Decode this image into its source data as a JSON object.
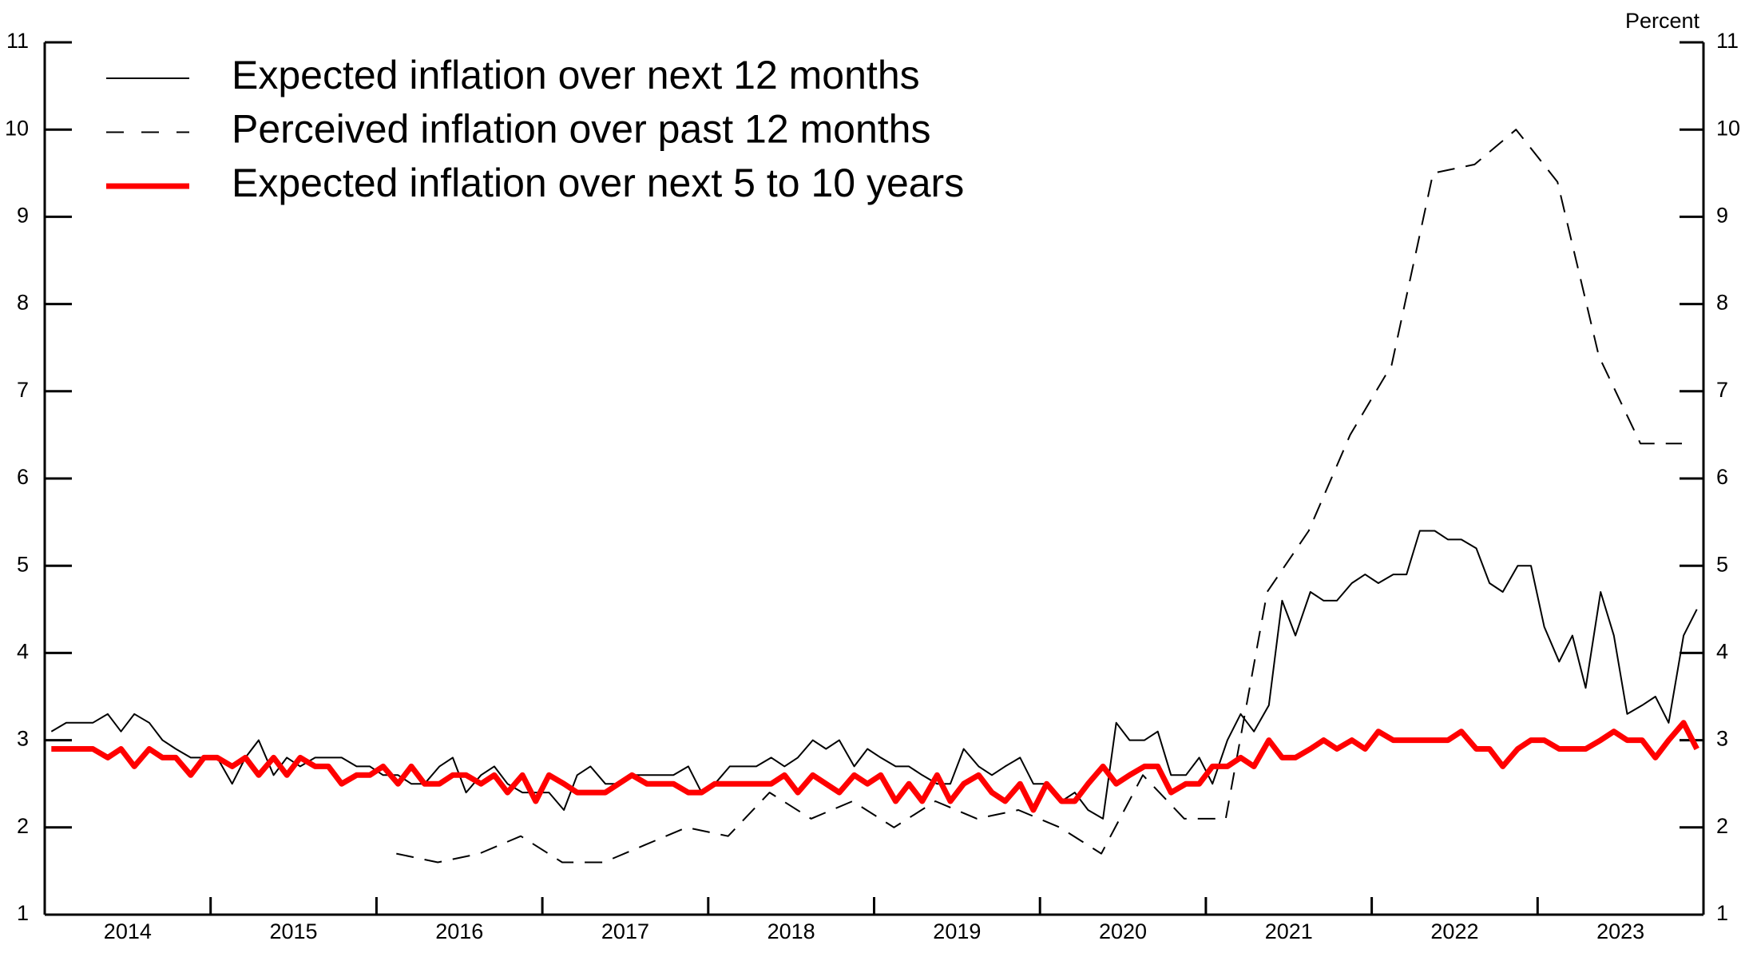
{
  "chart_data": {
    "type": "line",
    "y_label": "Percent",
    "categories": [
      "2014",
      "2015",
      "2016",
      "2017",
      "2018",
      "2019",
      "2020",
      "2021",
      "2022",
      "2023"
    ],
    "xlim": [
      2014,
      2024
    ],
    "xticks": [
      2014,
      2015,
      2016,
      2017,
      2018,
      2019,
      2020,
      2021,
      2022,
      2023,
      2024
    ],
    "ylim": [
      1,
      11
    ],
    "yticks": [
      1,
      2,
      3,
      4,
      5,
      6,
      7,
      8,
      9,
      10,
      11
    ],
    "y2lim": [
      1,
      11
    ],
    "y2ticks": [
      1,
      2,
      3,
      4,
      5,
      6,
      7,
      8,
      9,
      10,
      11
    ],
    "legend": "upper left",
    "x": [
      2014.04,
      2014.13,
      2014.21,
      2014.29,
      2014.38,
      2014.46,
      2014.54,
      2014.63,
      2014.71,
      2014.79,
      2014.88,
      2014.96,
      2015.04,
      2015.13,
      2015.21,
      2015.29,
      2015.38,
      2015.46,
      2015.54,
      2015.63,
      2015.71,
      2015.79,
      2015.88,
      2015.96,
      2016.04,
      2016.13,
      2016.21,
      2016.29,
      2016.38,
      2016.46,
      2016.54,
      2016.63,
      2016.71,
      2016.79,
      2016.88,
      2016.96,
      2017.04,
      2017.13,
      2017.21,
      2017.29,
      2017.38,
      2017.46,
      2017.54,
      2017.63,
      2017.71,
      2017.79,
      2017.88,
      2017.96,
      2018.04,
      2018.13,
      2018.21,
      2018.29,
      2018.38,
      2018.46,
      2018.54,
      2018.63,
      2018.71,
      2018.79,
      2018.88,
      2018.96,
      2019.04,
      2019.13,
      2019.21,
      2019.29,
      2019.38,
      2019.46,
      2019.54,
      2019.63,
      2019.71,
      2019.79,
      2019.88,
      2019.96,
      2020.04,
      2020.13,
      2020.21,
      2020.29,
      2020.38,
      2020.46,
      2020.54,
      2020.63,
      2020.71,
      2020.79,
      2020.88,
      2020.96,
      2021.04,
      2021.13,
      2021.21,
      2021.29,
      2021.38,
      2021.46,
      2021.54,
      2021.63,
      2021.71,
      2021.79,
      2021.88,
      2021.96,
      2022.04,
      2022.13,
      2022.21,
      2022.29,
      2022.38,
      2022.46,
      2022.54,
      2022.63,
      2022.71,
      2022.79,
      2022.88,
      2022.96,
      2023.04,
      2023.13,
      2023.21,
      2023.29,
      2023.38,
      2023.46,
      2023.54,
      2023.63,
      2023.71,
      2023.79,
      2023.88,
      2023.96
    ],
    "series": [
      {
        "name": "Expected inflation over next 12 months",
        "color": "#000000",
        "dash": false,
        "line_width": 2,
        "values": [
          3.1,
          3.2,
          3.2,
          3.2,
          3.3,
          3.1,
          3.3,
          3.2,
          3.0,
          2.9,
          2.8,
          2.8,
          2.8,
          2.5,
          2.8,
          3.0,
          2.6,
          2.8,
          2.7,
          2.8,
          2.8,
          2.8,
          2.7,
          2.7,
          2.6,
          2.6,
          2.5,
          2.5,
          2.7,
          2.8,
          2.4,
          2.6,
          2.7,
          2.5,
          2.4,
          2.4,
          2.4,
          2.2,
          2.6,
          2.7,
          2.5,
          2.5,
          2.6,
          2.6,
          2.6,
          2.6,
          2.7,
          2.4,
          2.5,
          2.7,
          2.7,
          2.7,
          2.8,
          2.7,
          2.8,
          3.0,
          2.9,
          3.0,
          2.7,
          2.9,
          2.8,
          2.7,
          2.7,
          2.6,
          2.5,
          2.5,
          2.9,
          2.7,
          2.6,
          2.7,
          2.8,
          2.5,
          2.5,
          2.3,
          2.4,
          2.2,
          2.1,
          3.2,
          3.0,
          3.0,
          3.1,
          2.6,
          2.6,
          2.8,
          2.5,
          3.0,
          3.3,
          3.1,
          3.4,
          4.6,
          4.2,
          4.7,
          4.6,
          4.6,
          4.8,
          4.9,
          4.8,
          4.9,
          4.9,
          5.4,
          5.4,
          5.3,
          5.3,
          5.2,
          4.8,
          4.7,
          5.0,
          5.0,
          4.3,
          3.9,
          4.2,
          3.6,
          4.7,
          4.2,
          3.3,
          3.4,
          3.5,
          3.2,
          4.2,
          4.5
        ]
      },
      {
        "name": "Perceived inflation over past 12 months",
        "color": "#000000",
        "dash": true,
        "line_width": 2,
        "x": [
          2016.12,
          2016.37,
          2016.62,
          2016.87,
          2017.12,
          2017.37,
          2017.62,
          2017.87,
          2018.12,
          2018.37,
          2018.62,
          2018.87,
          2019.12,
          2019.37,
          2019.62,
          2019.87,
          2020.12,
          2020.37,
          2020.62,
          2020.87,
          2021.12,
          2021.37,
          2021.62,
          2021.87,
          2022.12,
          2022.37,
          2022.62,
          2022.87,
          2023.12,
          2023.37,
          2023.62,
          2023.87
        ],
        "values": [
          1.7,
          1.6,
          1.7,
          1.9,
          1.6,
          1.6,
          1.8,
          2.0,
          1.9,
          2.4,
          2.1,
          2.3,
          2.0,
          2.3,
          2.1,
          2.2,
          2.0,
          1.7,
          2.6,
          2.1,
          2.1,
          4.7,
          5.4,
          6.5,
          7.3,
          9.5,
          9.6,
          10.0,
          9.4,
          7.4,
          6.4,
          6.4
        ]
      },
      {
        "name": "Expected inflation over next 5 to 10 years",
        "color": "#ff0000",
        "dash": false,
        "line_width": 7,
        "values": [
          2.9,
          2.9,
          2.9,
          2.9,
          2.8,
          2.9,
          2.7,
          2.9,
          2.8,
          2.8,
          2.6,
          2.8,
          2.8,
          2.7,
          2.8,
          2.6,
          2.8,
          2.6,
          2.8,
          2.7,
          2.7,
          2.5,
          2.6,
          2.6,
          2.7,
          2.5,
          2.7,
          2.5,
          2.5,
          2.6,
          2.6,
          2.5,
          2.6,
          2.4,
          2.6,
          2.3,
          2.6,
          2.5,
          2.4,
          2.4,
          2.4,
          2.5,
          2.6,
          2.5,
          2.5,
          2.5,
          2.4,
          2.4,
          2.5,
          2.5,
          2.5,
          2.5,
          2.5,
          2.6,
          2.4,
          2.6,
          2.5,
          2.4,
          2.6,
          2.5,
          2.6,
          2.3,
          2.5,
          2.3,
          2.6,
          2.3,
          2.5,
          2.6,
          2.4,
          2.3,
          2.5,
          2.2,
          2.5,
          2.3,
          2.3,
          2.5,
          2.7,
          2.5,
          2.6,
          2.7,
          2.7,
          2.4,
          2.5,
          2.5,
          2.7,
          2.7,
          2.8,
          2.7,
          3.0,
          2.8,
          2.8,
          2.9,
          3.0,
          2.9,
          3.0,
          2.9,
          3.1,
          3.0,
          3.0,
          3.0,
          3.0,
          3.0,
          3.1,
          2.9,
          2.9,
          2.7,
          2.9,
          3.0,
          3.0,
          2.9,
          2.9,
          2.9,
          3.0,
          3.1,
          3.0,
          3.0,
          2.8,
          3.0,
          3.2,
          2.9
        ]
      }
    ]
  }
}
